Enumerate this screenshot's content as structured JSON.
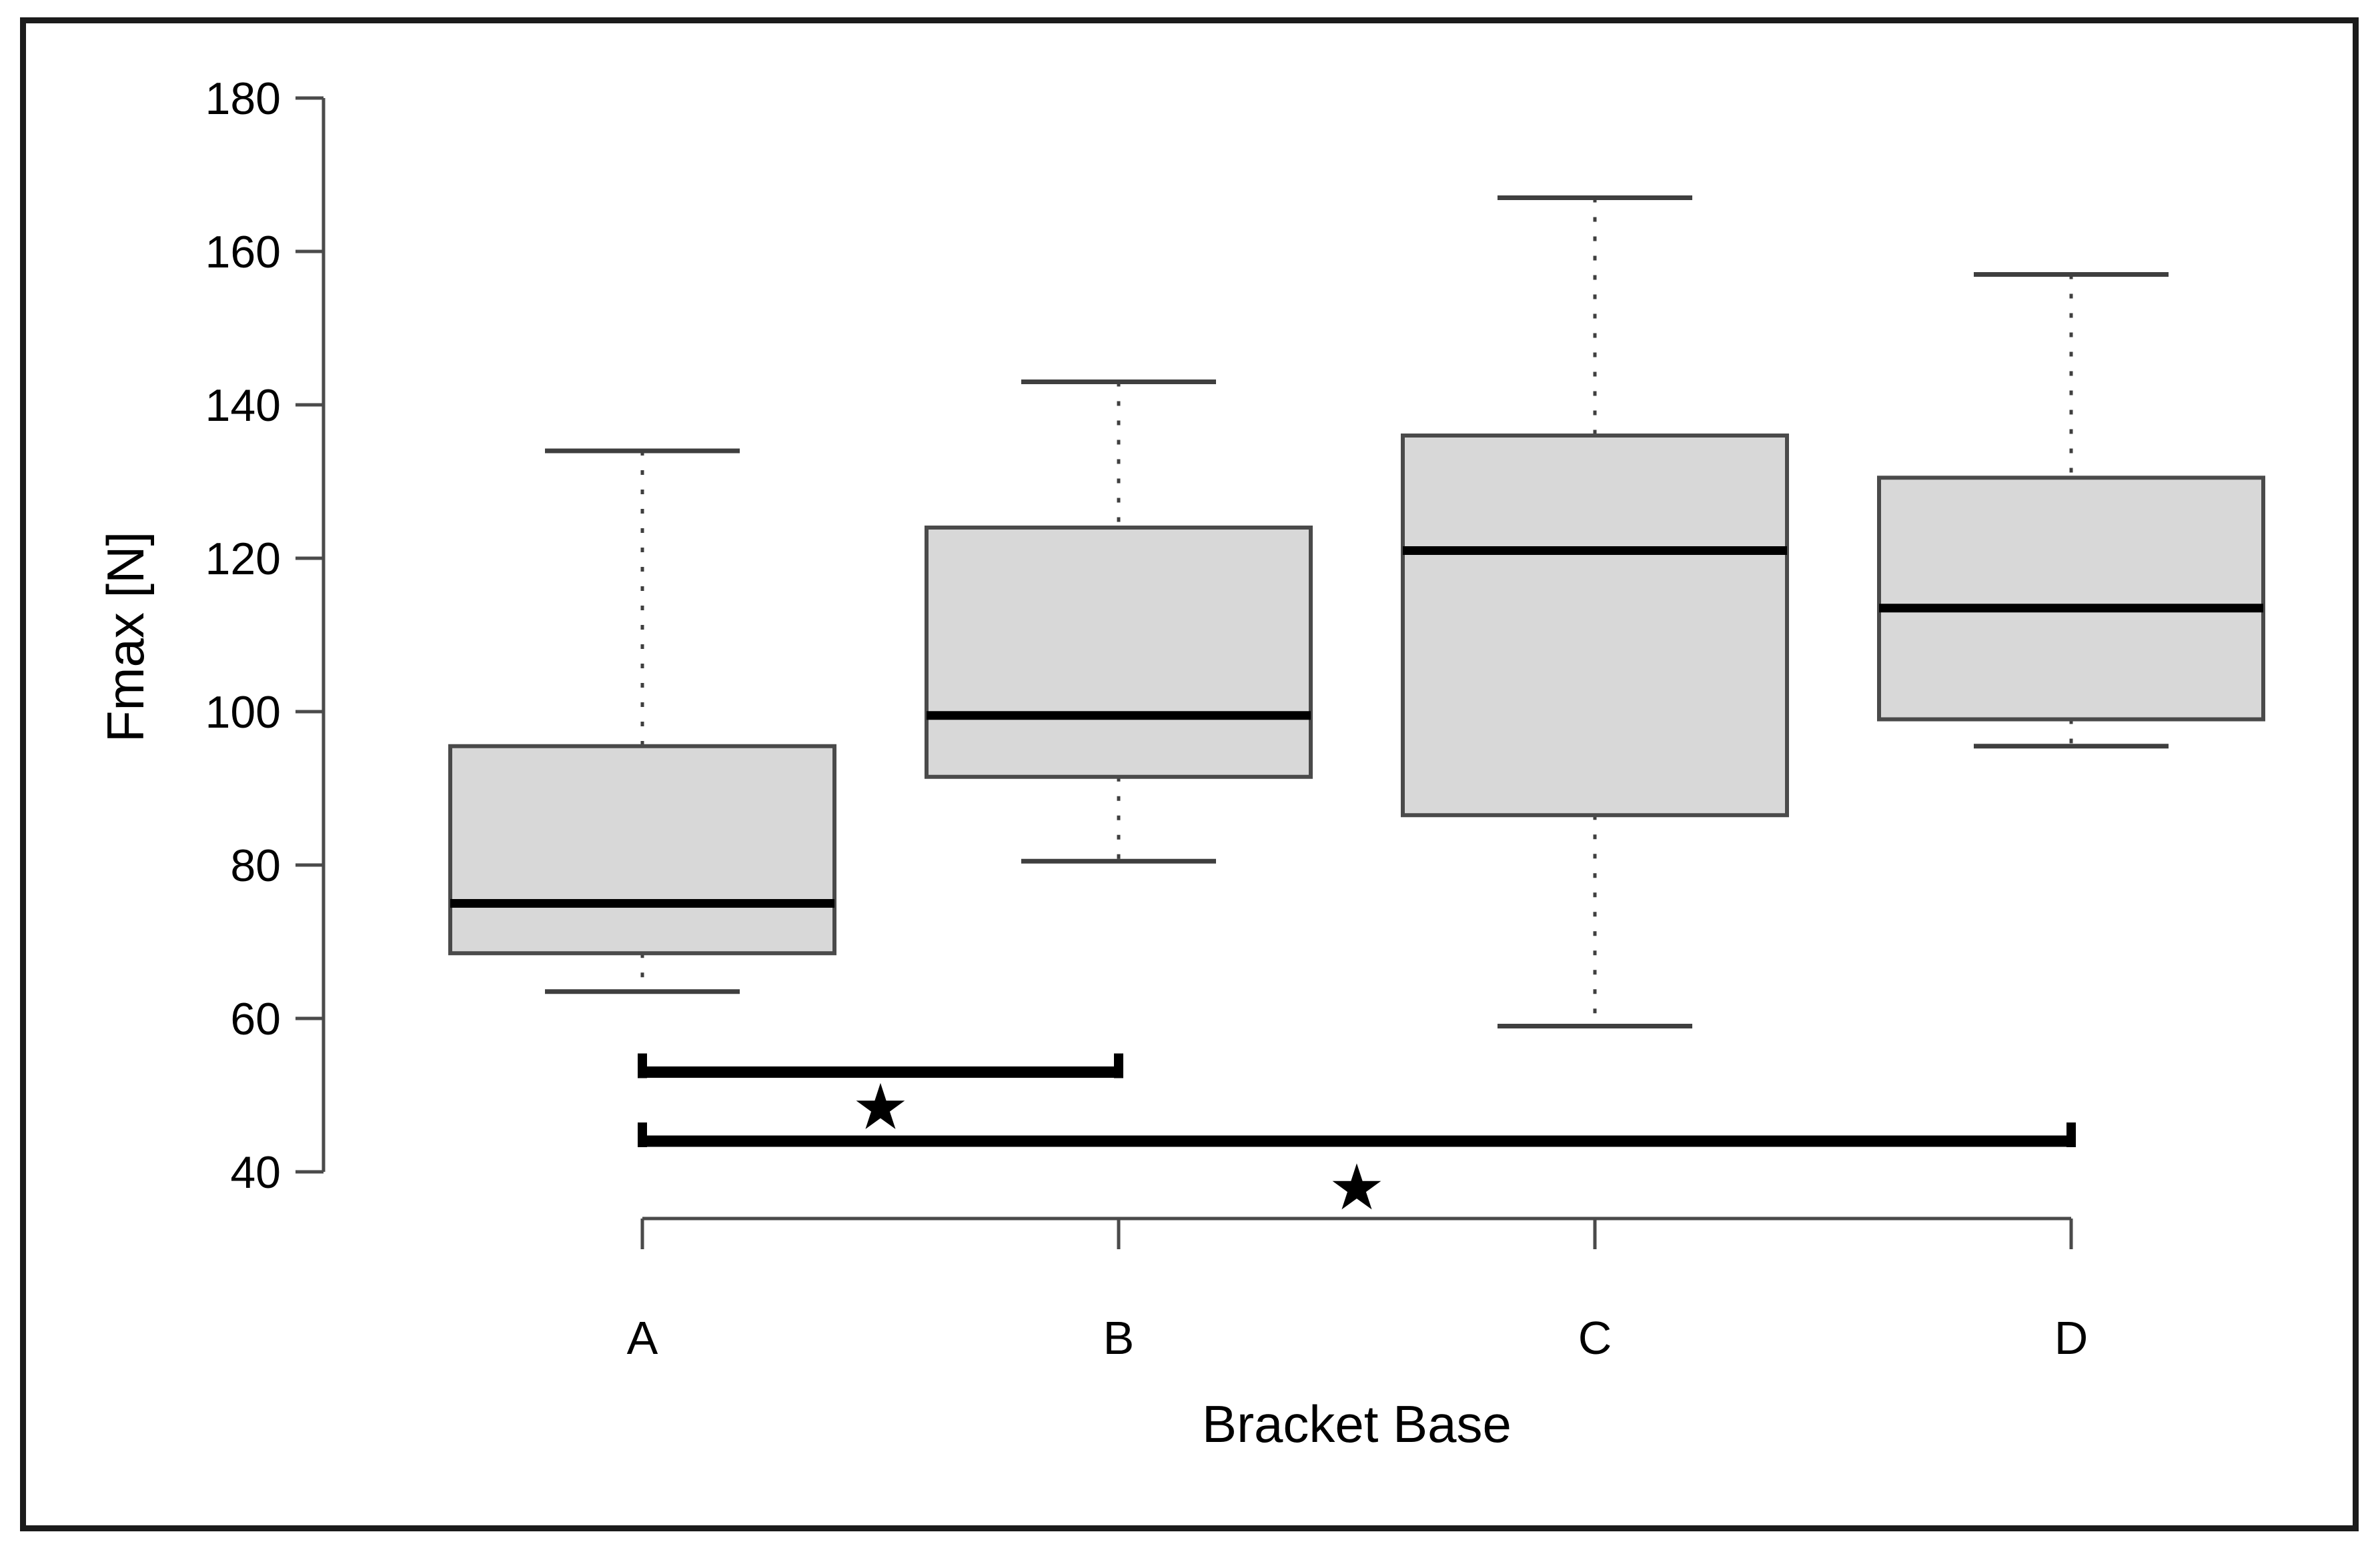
{
  "chart_data": {
    "type": "boxplot",
    "title": "",
    "xlabel": "Bracket Base",
    "ylabel": "Fmax [N]",
    "categories": [
      "A",
      "B",
      "C",
      "D"
    ],
    "y_axis": {
      "min": 40,
      "max": 180,
      "ticks": [
        40,
        60,
        80,
        100,
        120,
        140,
        160,
        180
      ]
    },
    "series": [
      {
        "category": "A",
        "whisker_low": 63.5,
        "q1": 68.5,
        "median": 75,
        "q3": 95.5,
        "whisker_high": 134
      },
      {
        "category": "B",
        "whisker_low": 80.5,
        "q1": 91.5,
        "median": 99.5,
        "q3": 124,
        "whisker_high": 143
      },
      {
        "category": "C",
        "whisker_low": 59,
        "q1": 86.5,
        "median": 121,
        "q3": 136,
        "whisker_high": 167
      },
      {
        "category": "D",
        "whisker_low": 95.5,
        "q1": 99,
        "median": 113.5,
        "q3": 130.5,
        "whisker_high": 157
      }
    ],
    "significance": [
      {
        "from": "A",
        "to": "B",
        "label": "★",
        "bar_value": 53,
        "label_value": 48.5
      },
      {
        "from": "A",
        "to": "D",
        "label": "★",
        "bar_value": 44,
        "label_value": 38
      }
    ],
    "grid": false,
    "legend": null,
    "colors": {
      "box_fill": "#d8d8d8",
      "box_stroke": "#4a4a4a",
      "median": "#000000",
      "whisker": "#3f3f3f",
      "axis": "#4a4a4a",
      "significance": "#000000",
      "text": "#000000",
      "frame_border": "#1b1b1b",
      "background": "#ffffff"
    }
  }
}
